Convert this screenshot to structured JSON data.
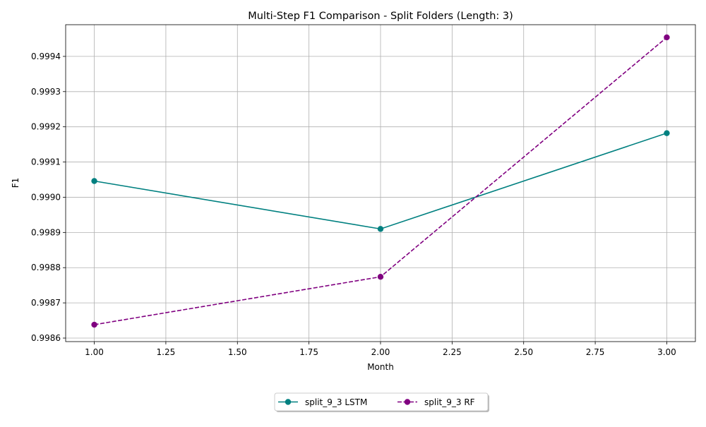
{
  "chart_data": {
    "type": "line",
    "title": "Multi-Step F1 Comparison - Split Folders (Length: 3)",
    "xlabel": "Month",
    "ylabel": "F1",
    "xlim": [
      0.9,
      3.1
    ],
    "ylim": [
      0.99859,
      0.99949
    ],
    "xticks": [
      1.0,
      1.25,
      1.5,
      1.75,
      2.0,
      2.25,
      2.5,
      2.75,
      3.0
    ],
    "xtick_labels": [
      "1.00",
      "1.25",
      "1.50",
      "1.75",
      "2.00",
      "2.25",
      "2.50",
      "2.75",
      "3.00"
    ],
    "yticks": [
      0.9986,
      0.9987,
      0.9988,
      0.9989,
      0.999,
      0.9991,
      0.9992,
      0.9993,
      0.9994
    ],
    "ytick_labels": [
      "0.9986",
      "0.9987",
      "0.9988",
      "0.9989",
      "0.9990",
      "0.9991",
      "0.9992",
      "0.9993",
      "0.9994"
    ],
    "grid": true,
    "legend_placement": "bottom-center",
    "series": [
      {
        "name": "split_9_3 LSTM",
        "x": [
          1,
          2,
          3
        ],
        "y": [
          0.999046,
          0.99891,
          0.999182
        ],
        "color": "#008080",
        "style": "solid",
        "marker": "circle"
      },
      {
        "name": "split_9_3 RF",
        "x": [
          1,
          2,
          3
        ],
        "y": [
          0.998638,
          0.998774,
          0.999454
        ],
        "color": "#800080",
        "style": "dashed",
        "marker": "circle"
      }
    ]
  }
}
